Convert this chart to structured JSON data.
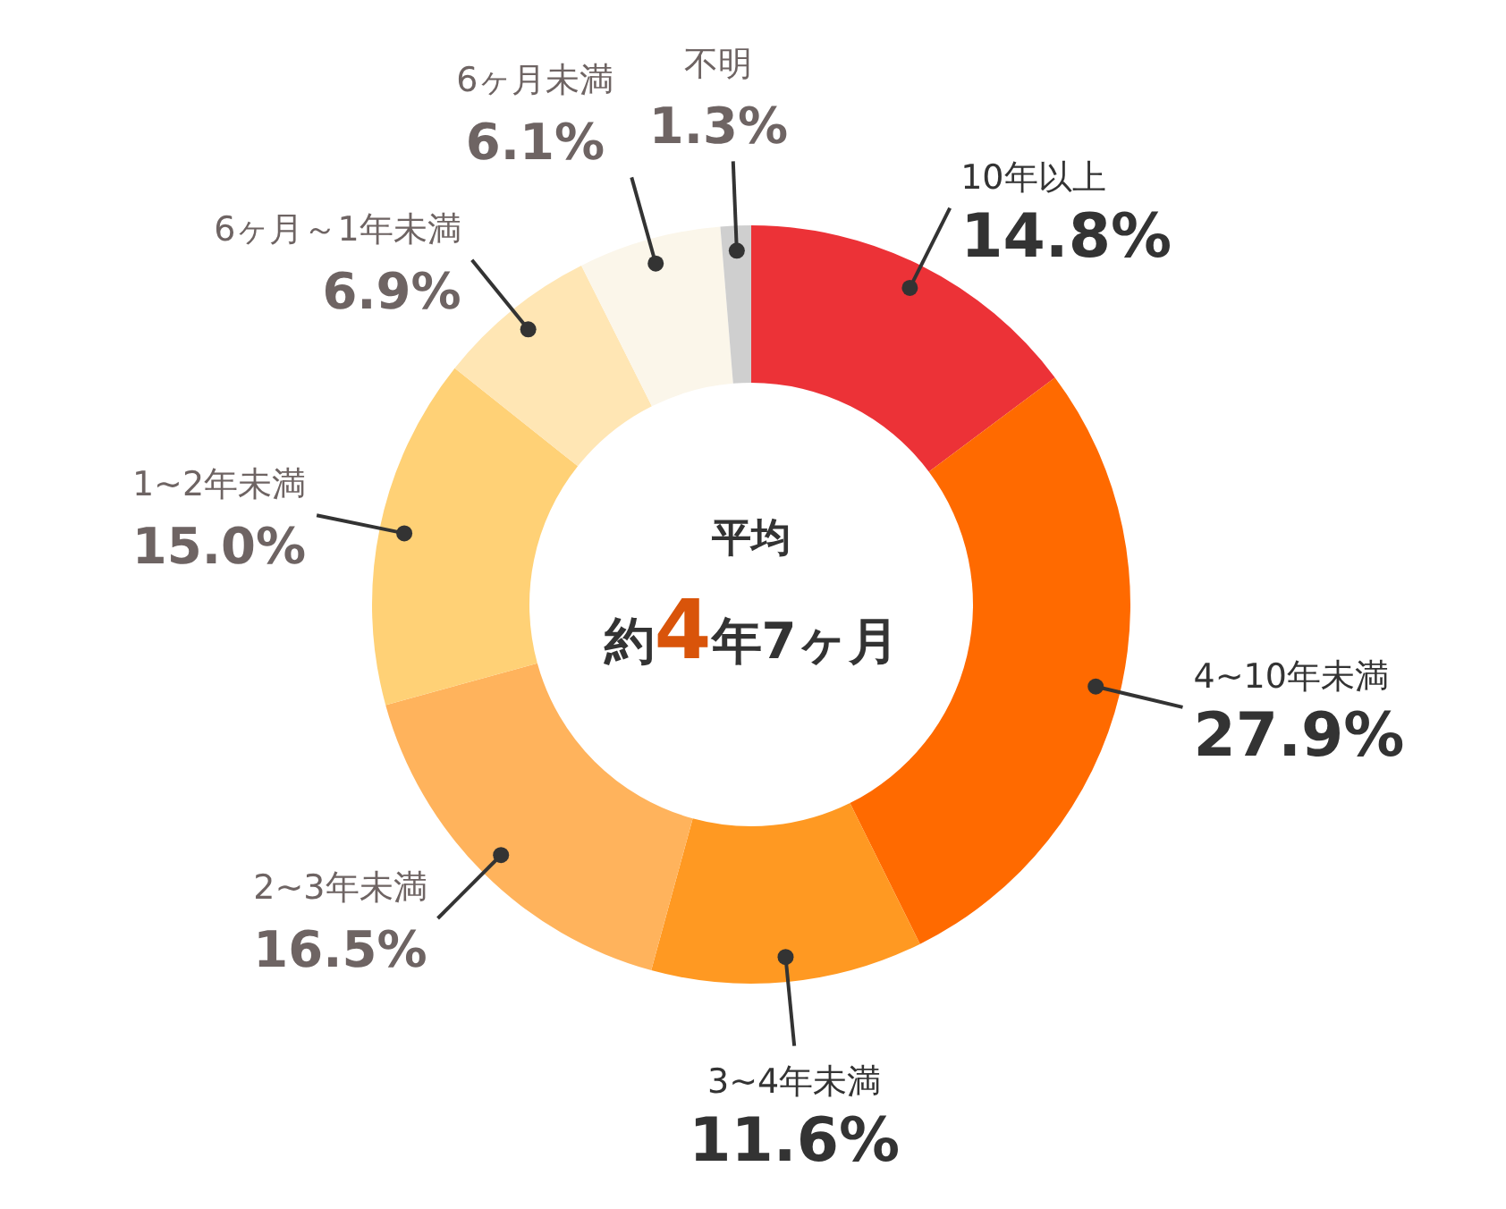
{
  "chart_data": {
    "type": "donut",
    "categories": [
      "10年以上",
      "4~10年未満",
      "3~4年未満",
      "2~3年未満",
      "1~2年未満",
      "6ヶ月～1年未満",
      "6ヶ月未満",
      "不明"
    ],
    "values": [
      14.8,
      27.9,
      11.6,
      16.5,
      15.0,
      6.9,
      6.1,
      1.3
    ],
    "value_labels": [
      "14.8%",
      "27.9%",
      "11.6%",
      "16.5%",
      "15.0%",
      "6.9%",
      "6.1%",
      "1.3%"
    ],
    "colors": [
      "#ec3237",
      "#ff6a00",
      "#ff9922",
      "#ffb35c",
      "#ffd176",
      "#ffe6b4",
      "#fbf6ea",
      "#cfcfcf"
    ],
    "annotations": [
      "平均",
      "約4年7ヶ月"
    ]
  }
}
